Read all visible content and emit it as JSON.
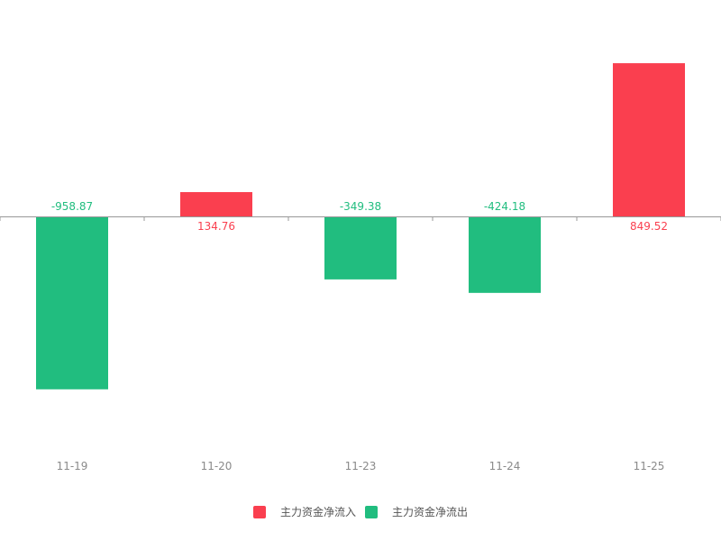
{
  "chart_data": {
    "type": "bar",
    "categories": [
      "11-19",
      "11-20",
      "11-23",
      "11-24",
      "11-25"
    ],
    "values": [
      -958.87,
      134.76,
      -349.38,
      -424.18,
      849.52
    ],
    "value_labels": [
      "-958.87",
      "134.76",
      "-349.38",
      "-424.18",
      "849.52"
    ],
    "ylim": [
      -1300,
      850
    ],
    "grid": false,
    "legend_position": "bottom-center",
    "legend": [
      {
        "name": "主力资金净流入",
        "color": "#fa3f4f"
      },
      {
        "name": "主力资金净流出",
        "color": "#21bd7f"
      }
    ],
    "colors": {
      "positive": "#fa3f4f",
      "negative": "#21bd7f",
      "axis": "#999999",
      "tick_text": "#8a8a8a"
    }
  }
}
